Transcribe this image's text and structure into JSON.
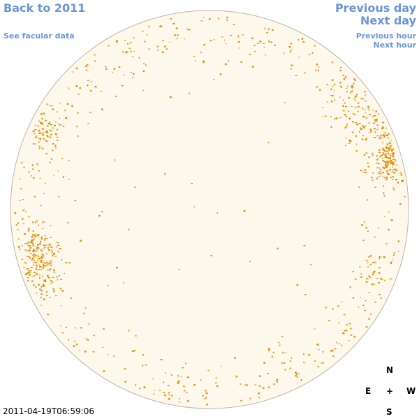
{
  "nav": {
    "back": "Back to 2011",
    "facular": "See facular data",
    "previous_day": "Previous day",
    "next_day": "Next day",
    "previous_hour": "Previous hour",
    "next_hour": "Next hour"
  },
  "compass": {
    "north": "N",
    "south": "S",
    "east": "E",
    "west": "W",
    "center": "+"
  },
  "timestamp": "2011-04-19T06:59:06",
  "colors": {
    "disk_fill": "#fdf8ec",
    "disk_stroke": "#bbb6a6",
    "feature": "#e88b00",
    "link": "#6a95db"
  }
}
